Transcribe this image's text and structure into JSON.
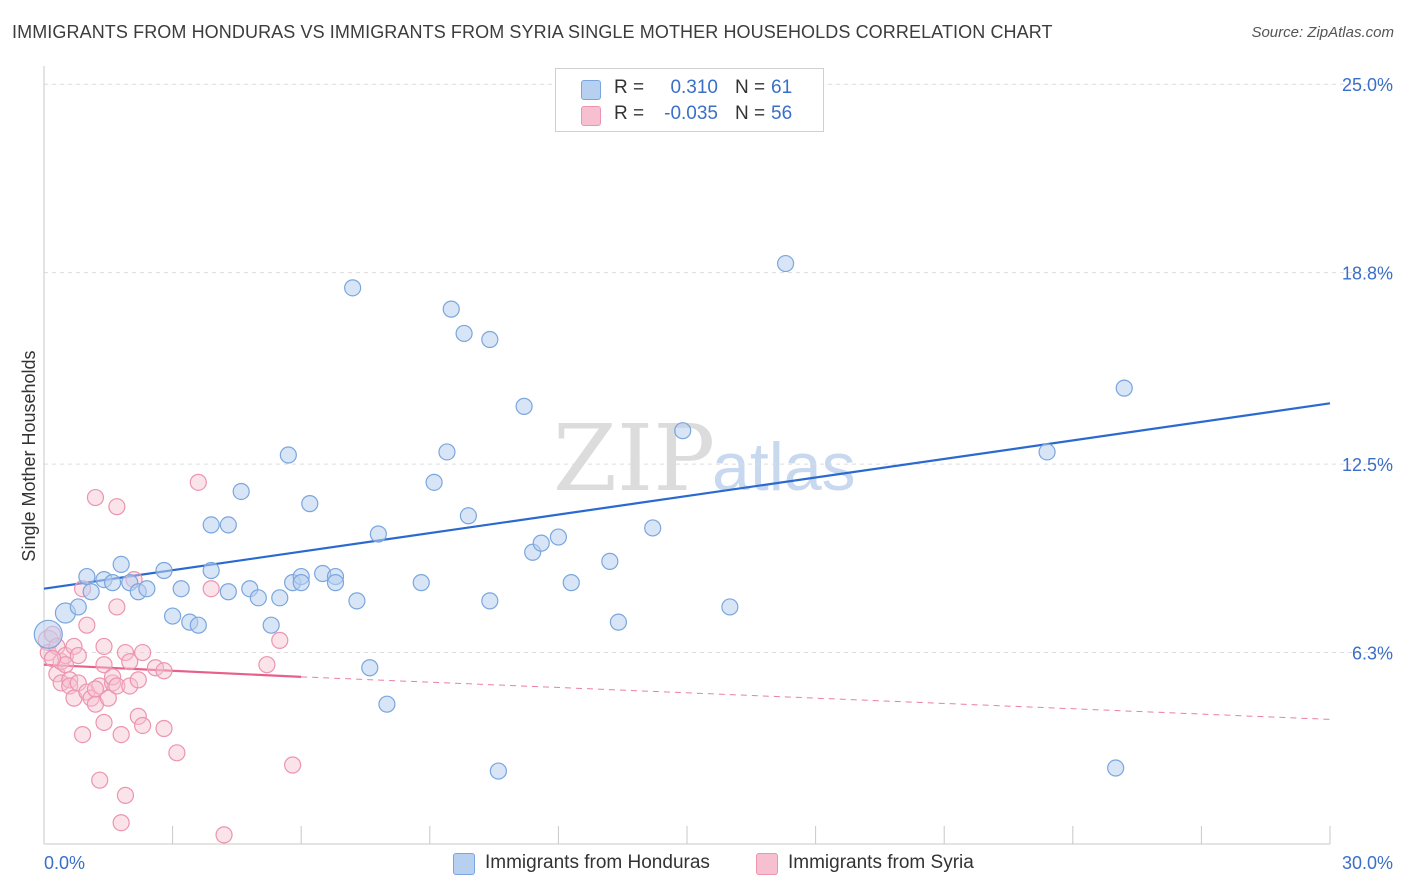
{
  "title": "IMMIGRANTS FROM HONDURAS VS IMMIGRANTS FROM SYRIA SINGLE MOTHER HOUSEHOLDS CORRELATION CHART",
  "source": "Source: ZipAtlas.com",
  "watermark": {
    "zip": "ZIP",
    "atlas": "atlas"
  },
  "colors": {
    "honduras_fill": "#b8d0f0",
    "honduras_stroke": "#7aa6de",
    "honduras_line": "#2a6ad0",
    "syria_fill": "#f6c0d0",
    "syria_stroke": "#ec94b0",
    "syria_line": "#e8608a",
    "value_text": "#3a6fc9",
    "grid": "#dcdcdc"
  },
  "legend": {
    "honduras": {
      "r_label": "R =",
      "r_value": "0.310",
      "n_label": "N =",
      "n_value": "61"
    },
    "syria": {
      "r_label": "R =",
      "r_value": "-0.035",
      "n_label": "N =",
      "n_value": "56"
    }
  },
  "bottom_legend": {
    "honduras": "Immigrants from Honduras",
    "syria": "Immigrants from Syria"
  },
  "chart_data": {
    "type": "scatter",
    "title": "IMMIGRANTS FROM HONDURAS VS IMMIGRANTS FROM SYRIA SINGLE MOTHER HOUSEHOLDS CORRELATION CHART",
    "xlabel": "",
    "ylabel": "Single Mother Households",
    "xlim": [
      0,
      30
    ],
    "ylim": [
      0,
      25.6
    ],
    "x_tick_labels": [
      "0.0%",
      "30.0%"
    ],
    "y_ticks": [
      6.3,
      12.5,
      18.8,
      25.0
    ],
    "y_tick_labels": [
      "6.3%",
      "12.5%",
      "18.8%",
      "25.0%"
    ],
    "grid": true,
    "series": [
      {
        "name": "Immigrants from Honduras",
        "points": [
          [
            0.1,
            6.9,
            14
          ],
          [
            0.5,
            7.6,
            10
          ],
          [
            0.8,
            7.8,
            8
          ],
          [
            1.0,
            8.8,
            8
          ],
          [
            1.1,
            8.3,
            8
          ],
          [
            1.4,
            8.7,
            8
          ],
          [
            1.6,
            8.6,
            8
          ],
          [
            1.8,
            9.2,
            8
          ],
          [
            2.0,
            8.6,
            8
          ],
          [
            2.2,
            8.3,
            8
          ],
          [
            2.4,
            8.4,
            8
          ],
          [
            2.8,
            9.0,
            8
          ],
          [
            3.2,
            8.4,
            8
          ],
          [
            3.0,
            7.5,
            8
          ],
          [
            3.4,
            7.3,
            8
          ],
          [
            3.6,
            7.2,
            8
          ],
          [
            3.9,
            9.0,
            8
          ],
          [
            4.3,
            8.3,
            8
          ],
          [
            3.9,
            10.5,
            8
          ],
          [
            4.3,
            10.5,
            8
          ],
          [
            4.6,
            11.6,
            8
          ],
          [
            4.8,
            8.4,
            8
          ],
          [
            5.0,
            8.1,
            8
          ],
          [
            5.3,
            7.2,
            8
          ],
          [
            5.5,
            8.1,
            8
          ],
          [
            5.7,
            12.8,
            8
          ],
          [
            5.8,
            8.6,
            8
          ],
          [
            6.0,
            8.8,
            8
          ],
          [
            6.0,
            8.6,
            8
          ],
          [
            6.2,
            11.2,
            8
          ],
          [
            6.5,
            8.9,
            8
          ],
          [
            6.8,
            8.8,
            8
          ],
          [
            6.8,
            8.6,
            8
          ],
          [
            7.2,
            18.3,
            8
          ],
          [
            7.3,
            8.0,
            8
          ],
          [
            7.8,
            10.2,
            8
          ],
          [
            7.6,
            5.8,
            8
          ],
          [
            8.0,
            4.6,
            8
          ],
          [
            8.8,
            8.6,
            8
          ],
          [
            9.1,
            11.9,
            8
          ],
          [
            9.4,
            12.9,
            8
          ],
          [
            9.5,
            17.6,
            8
          ],
          [
            9.8,
            16.8,
            8
          ],
          [
            9.9,
            10.8,
            8
          ],
          [
            10.4,
            16.6,
            8
          ],
          [
            10.4,
            8.0,
            8
          ],
          [
            10.6,
            2.4,
            8
          ],
          [
            11.2,
            14.4,
            8
          ],
          [
            11.4,
            9.6,
            8
          ],
          [
            11.6,
            9.9,
            8
          ],
          [
            12.0,
            10.1,
            8
          ],
          [
            12.3,
            8.6,
            8
          ],
          [
            13.2,
            9.3,
            8
          ],
          [
            13.4,
            7.3,
            8
          ],
          [
            14.2,
            10.4,
            8
          ],
          [
            14.9,
            13.6,
            8
          ],
          [
            16.0,
            7.8,
            8
          ],
          [
            17.3,
            19.1,
            8
          ],
          [
            23.4,
            12.9,
            8
          ],
          [
            25.2,
            15.0,
            8
          ],
          [
            25.0,
            2.5,
            8
          ]
        ],
        "trendline": {
          "x": [
            0,
            30
          ],
          "y": [
            8.4,
            14.5
          ],
          "style": "solid"
        }
      },
      {
        "name": "Immigrants from Syria",
        "points": [
          [
            0.1,
            6.7,
            10
          ],
          [
            0.1,
            6.3,
            8
          ],
          [
            0.2,
            6.9,
            8
          ],
          [
            0.3,
            6.5,
            8
          ],
          [
            0.3,
            5.6,
            8
          ],
          [
            0.4,
            6.0,
            8
          ],
          [
            0.4,
            5.3,
            8
          ],
          [
            0.5,
            6.2,
            8
          ],
          [
            0.5,
            5.9,
            8
          ],
          [
            0.6,
            5.4,
            8
          ],
          [
            0.6,
            5.2,
            8
          ],
          [
            0.7,
            4.8,
            8
          ],
          [
            0.7,
            6.5,
            8
          ],
          [
            0.8,
            6.2,
            8
          ],
          [
            0.8,
            5.3,
            8
          ],
          [
            0.9,
            3.6,
            8
          ],
          [
            0.9,
            8.4,
            8
          ],
          [
            1.0,
            7.2,
            8
          ],
          [
            1.0,
            5.0,
            8
          ],
          [
            1.1,
            4.8,
            8
          ],
          [
            1.2,
            4.6,
            8
          ],
          [
            1.2,
            11.4,
            8
          ],
          [
            1.3,
            2.1,
            8
          ],
          [
            1.3,
            5.2,
            8
          ],
          [
            1.4,
            6.5,
            8
          ],
          [
            1.4,
            5.9,
            8
          ],
          [
            1.5,
            4.8,
            8
          ],
          [
            1.4,
            4.0,
            8
          ],
          [
            1.6,
            5.3,
            8
          ],
          [
            1.6,
            5.5,
            8
          ],
          [
            1.7,
            5.2,
            8
          ],
          [
            1.7,
            7.8,
            8
          ],
          [
            1.7,
            11.1,
            8
          ],
          [
            1.8,
            3.6,
            8
          ],
          [
            1.8,
            0.7,
            8
          ],
          [
            1.9,
            1.6,
            8
          ],
          [
            1.9,
            6.3,
            8
          ],
          [
            2.0,
            5.2,
            8
          ],
          [
            2.0,
            6.0,
            8
          ],
          [
            2.1,
            8.7,
            8
          ],
          [
            2.2,
            5.4,
            8
          ],
          [
            2.2,
            4.2,
            8
          ],
          [
            2.3,
            3.9,
            8
          ],
          [
            2.3,
            6.3,
            8
          ],
          [
            2.6,
            5.8,
            8
          ],
          [
            2.8,
            5.7,
            8
          ],
          [
            2.8,
            3.8,
            8
          ],
          [
            3.1,
            3.0,
            8
          ],
          [
            3.6,
            11.9,
            8
          ],
          [
            3.9,
            8.4,
            8
          ],
          [
            5.2,
            5.9,
            8
          ],
          [
            5.5,
            6.7,
            8
          ],
          [
            5.8,
            2.6,
            8
          ],
          [
            4.2,
            0.3,
            8
          ],
          [
            0.2,
            6.1,
            8
          ],
          [
            1.2,
            5.1,
            8
          ]
        ],
        "trendline": {
          "solid_x": [
            0,
            6.0
          ],
          "solid_y": [
            5.9,
            5.5
          ],
          "dashed_x": [
            6.0,
            30
          ],
          "dashed_y": [
            5.5,
            4.1
          ]
        }
      }
    ]
  }
}
